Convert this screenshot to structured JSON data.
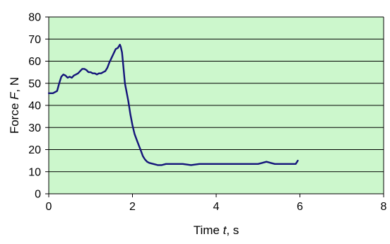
{
  "chart_data": {
    "type": "line",
    "title": "",
    "xlabel": "Time ",
    "xlabel_var": "t",
    "xlabel_unit": ", s",
    "ylabel": "Force ",
    "ylabel_var": "F",
    "ylabel_unit": ", N",
    "xlim": [
      0,
      8
    ],
    "ylim": [
      0,
      80
    ],
    "xticks": [
      0,
      2,
      4,
      6,
      8
    ],
    "yticks": [
      0,
      10,
      20,
      30,
      40,
      50,
      60,
      70,
      80
    ],
    "grid": "horizontal",
    "legend": "none",
    "colors": {
      "plot_background": "#ccf7cc",
      "line": "#14147a",
      "grid": "#000000"
    },
    "series": [
      {
        "x": [
          0,
          0.1,
          0.2,
          0.25,
          0.3,
          0.35,
          0.4,
          0.45,
          0.5,
          0.55,
          0.6,
          0.65,
          0.7,
          0.75,
          0.8,
          0.85,
          0.9,
          0.95,
          1.0,
          1.05,
          1.1,
          1.15,
          1.2,
          1.25,
          1.3,
          1.35,
          1.4,
          1.45,
          1.5,
          1.55,
          1.6,
          1.65,
          1.7,
          1.72,
          1.75,
          1.78,
          1.82,
          1.85,
          1.9,
          1.95,
          2.0,
          2.05,
          2.1,
          2.15,
          2.2,
          2.25,
          2.3,
          2.35,
          2.4,
          2.5,
          2.6,
          2.7,
          2.8,
          3.0,
          3.2,
          3.4,
          3.6,
          3.8,
          4.0,
          4.2,
          4.4,
          4.6,
          4.8,
          5.0,
          5.1,
          5.2,
          5.3,
          5.4,
          5.6,
          5.8,
          5.9,
          5.95
        ],
        "values": [
          45.5,
          45.5,
          46.5,
          50,
          53,
          54,
          53.5,
          52.5,
          53,
          52.5,
          53.5,
          54,
          54.5,
          55.5,
          56.5,
          56.5,
          56,
          55,
          55,
          54.5,
          54.5,
          54,
          54.5,
          54.5,
          55,
          55.5,
          57,
          59.5,
          61.5,
          63.5,
          65.5,
          66,
          67.5,
          66.5,
          64,
          58,
          50,
          47,
          42,
          36,
          31,
          27,
          24.5,
          22,
          19.5,
          17,
          15.5,
          14.5,
          14,
          13.5,
          13,
          13,
          13.5,
          13.5,
          13.5,
          13,
          13.5,
          13.5,
          13.5,
          13.5,
          13.5,
          13.5,
          13.5,
          13.5,
          14,
          14.5,
          14,
          13.5,
          13.5,
          13.5,
          13.5,
          15
        ]
      }
    ]
  }
}
